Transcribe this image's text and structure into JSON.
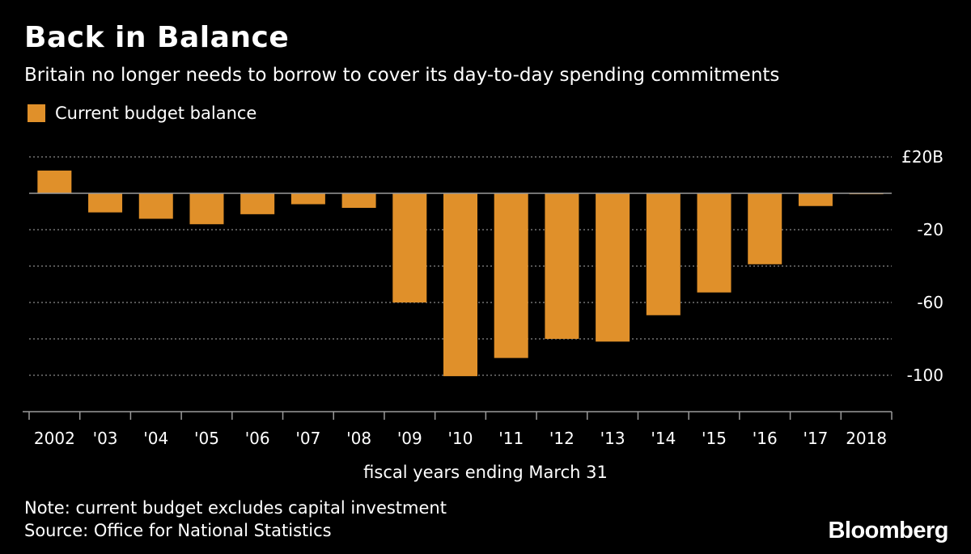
{
  "title": "Back in Balance",
  "subtitle": "Britain no longer needs to borrow to cover its day-to-day spending commitments",
  "note": "Note: current budget excludes capital investment",
  "source": "Source: Office for National Statistics",
  "brand": "Bloomberg",
  "colors": {
    "background": "#000000",
    "bar": "#e0902a",
    "text": "#ffffff",
    "grid": "#8a8a8a",
    "zero_line": "#9a9a9a"
  },
  "chart_data": {
    "type": "bar",
    "categories": [
      "2002",
      "'03",
      "'04",
      "'05",
      "'06",
      "'07",
      "'08",
      "'09",
      "'10",
      "'11",
      "'12",
      "'13",
      "'14",
      "'15",
      "'16",
      "'17",
      "2018"
    ],
    "series": [
      {
        "name": "Current budget balance",
        "values": [
          12.5,
          -10.5,
          -14,
          -17,
          -11.5,
          -6,
          -8,
          -60,
          -100.5,
          -90.5,
          -80,
          -81.5,
          -67,
          -54.5,
          -39,
          -7,
          -0.5
        ]
      }
    ],
    "xlabel": "fiscal years ending March 31",
    "ylim": [
      -120,
      20
    ],
    "yticks": [
      20,
      -20,
      -60,
      -100
    ],
    "ytick_labels": [
      "£20B",
      "-20",
      "-60",
      "-100"
    ],
    "gridlines": [
      20,
      0,
      -20,
      -40,
      -60,
      -80,
      -100
    ],
    "grid": true,
    "legend": "top-left"
  }
}
